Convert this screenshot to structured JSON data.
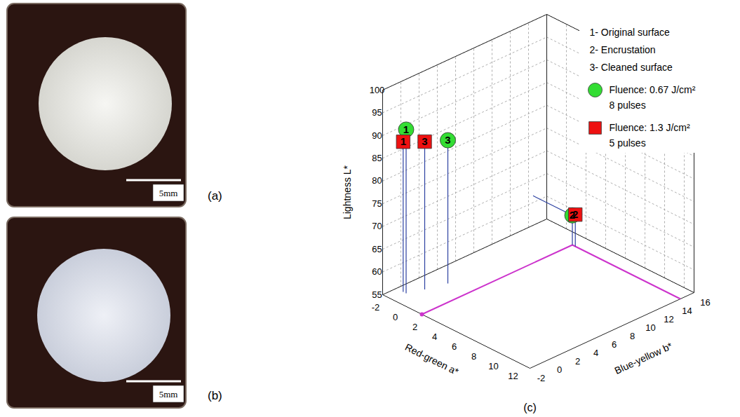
{
  "figure": {
    "panels": [
      {
        "label": "(a)",
        "type": "photo",
        "scale_bar": "5mm"
      },
      {
        "label": "(b)",
        "type": "photo",
        "scale_bar": "5mm"
      }
    ]
  },
  "chart_data": {
    "type": "scatter3d",
    "panel_label": "(c)",
    "x_label": "Red-green a*",
    "y_label": "Blue-yellow b*",
    "z_label": "Lightness L*",
    "xlim": [
      -2,
      13
    ],
    "xticks": [
      -2,
      0,
      2,
      4,
      6,
      8,
      10,
      12
    ],
    "ylim": [
      -2,
      16
    ],
    "yticks": [
      -2,
      0,
      2,
      4,
      6,
      8,
      10,
      12,
      14,
      16
    ],
    "zlim": [
      55,
      100
    ],
    "zticks": [
      55,
      60,
      65,
      70,
      75,
      80,
      85,
      90,
      95,
      100
    ],
    "grid": true,
    "legend": "top-right",
    "annotations": [
      "1- Original surface",
      "2- Encrustation",
      "3- Cleaned surface"
    ],
    "series": [
      {
        "name": "Fluence: 0.67 J/cm²\n8 pulses",
        "color": "#33dd33",
        "marker": "circle",
        "labels": [
          "1",
          "2",
          "3"
        ],
        "x": [
          -1,
          2,
          0
        ],
        "y": [
          -0.5,
          14.5,
          3
        ],
        "z": [
          91,
          61.5,
          86.5
        ]
      },
      {
        "name": "Fluence: 1.3 J/cm²\n5 pulses",
        "color": "#ee1111",
        "marker": "square",
        "labels": [
          "1",
          "2",
          "3"
        ],
        "x": [
          -1.3,
          2.3,
          -0.5
        ],
        "y": [
          -0.5,
          14.5,
          1
        ],
        "z": [
          88,
          62,
          87.5
        ]
      }
    ]
  }
}
